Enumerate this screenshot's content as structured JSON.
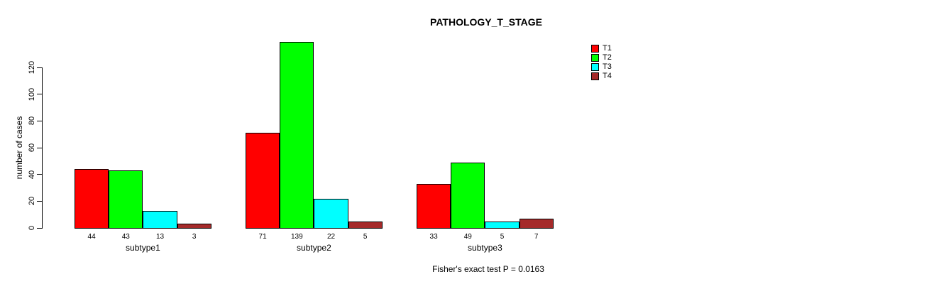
{
  "title": "PATHOLOGY_T_STAGE",
  "footer": "Fisher's exact test P = 0.0163",
  "chart_data": {
    "type": "bar",
    "grouped": true,
    "title": "PATHOLOGY_T_STAGE",
    "xlabel": "",
    "ylabel": "number of cases",
    "ylim": [
      0,
      139
    ],
    "yticks": [
      0,
      20,
      40,
      60,
      80,
      100,
      120
    ],
    "grid": false,
    "legend_position": "top-right",
    "categories": [
      "subtype1",
      "subtype2",
      "subtype3"
    ],
    "series": [
      {
        "name": "T1",
        "color": "#FF0000",
        "values": [
          44,
          71,
          33
        ]
      },
      {
        "name": "T2",
        "color": "#00FF00",
        "values": [
          43,
          139,
          49
        ]
      },
      {
        "name": "T3",
        "color": "#00FFFF",
        "values": [
          13,
          22,
          5
        ]
      },
      {
        "name": "T4",
        "color": "#A52A2A",
        "values": [
          3,
          5,
          7
        ]
      }
    ],
    "bar_value_labels": [
      [
        44,
        43,
        13,
        3
      ],
      [
        71,
        139,
        22,
        5
      ],
      [
        33,
        49,
        5,
        7
      ]
    ],
    "annotation": "Fisher's exact test P = 0.0163"
  }
}
